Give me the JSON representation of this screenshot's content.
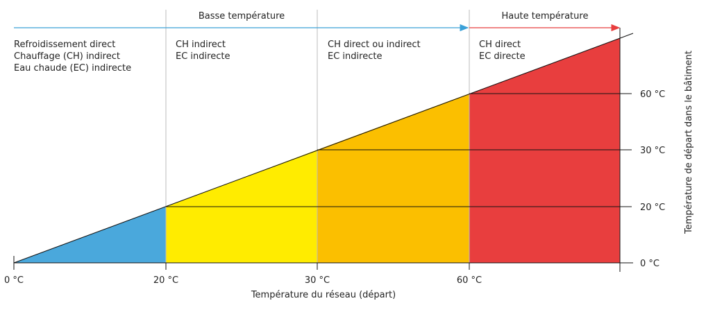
{
  "bands": {
    "low": "Basse température",
    "high": "Haute température"
  },
  "columns": [
    {
      "lines": [
        "Refroidissement direct",
        "Chauffage (CH) indirect",
        "Eau chaude (EC) indirecte"
      ]
    },
    {
      "lines": [
        "CH indirect",
        "EC indirecte"
      ]
    },
    {
      "lines": [
        "CH direct ou indirect",
        "EC indirecte"
      ]
    },
    {
      "lines": [
        "CH direct",
        "EC directe"
      ]
    }
  ],
  "x_ticks": [
    "0 °C",
    "20 °C",
    "30 °C",
    "60 °C"
  ],
  "y_ticks": [
    "0 °C",
    "20 °C",
    "30 °C",
    "60 °C"
  ],
  "x_axis_title": "Température du réseau (départ)",
  "y_axis_title": "Température de départ dans le bâtiment"
}
